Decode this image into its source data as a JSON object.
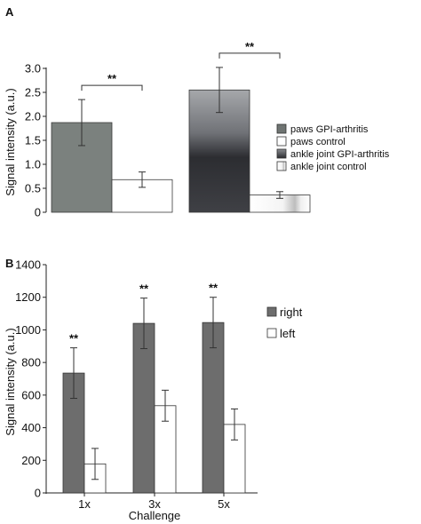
{
  "chart_data": [
    {
      "panel": "A",
      "type": "bar",
      "ylabel": "Signal intensity (a.u.)",
      "ylim": [
        0,
        3.0
      ],
      "yticks": [
        "0",
        "0.5",
        "1.0",
        "1.5",
        "2.0",
        "2.5",
        "3.0"
      ],
      "groups": [
        {
          "bars": [
            {
              "name": "paws GPI-arthritis",
              "value": 1.87,
              "err": 0.48,
              "color": "#7b817e"
            },
            {
              "name": "paws control",
              "value": 0.68,
              "err": 0.16,
              "color": "#ffffff"
            }
          ],
          "significance": "**"
        },
        {
          "bars": [
            {
              "name": "ankle joint GPI-arthritis",
              "value": 2.55,
              "err": 0.47,
              "color": "#3a3b3f"
            },
            {
              "name": "ankle joint control",
              "value": 0.36,
              "err": 0.07,
              "color": "#e8e8e8"
            }
          ],
          "significance": "**"
        }
      ],
      "legend": [
        "paws GPI-arthritis",
        "paws control",
        "ankle joint GPI-arthritis",
        "ankle joint control"
      ]
    },
    {
      "panel": "B",
      "type": "bar",
      "ylabel": "Signal intensity (a.u.)",
      "xlabel": "Challenge",
      "ylim": [
        0,
        1400
      ],
      "yticks": [
        "0",
        "200",
        "400",
        "600",
        "800",
        "1000",
        "1200",
        "1400"
      ],
      "categories": [
        "1x",
        "3x",
        "5x"
      ],
      "series": [
        {
          "name": "right",
          "values": [
            735,
            1040,
            1045
          ],
          "errors": [
            155,
            155,
            155
          ],
          "color": "#6d6d6d"
        },
        {
          "name": "left",
          "values": [
            178,
            535,
            420
          ],
          "errors": [
            95,
            95,
            95
          ],
          "color": "#ffffff"
        }
      ],
      "significance": [
        "**",
        "**",
        "**"
      ],
      "legend": [
        "right",
        "left"
      ]
    }
  ]
}
